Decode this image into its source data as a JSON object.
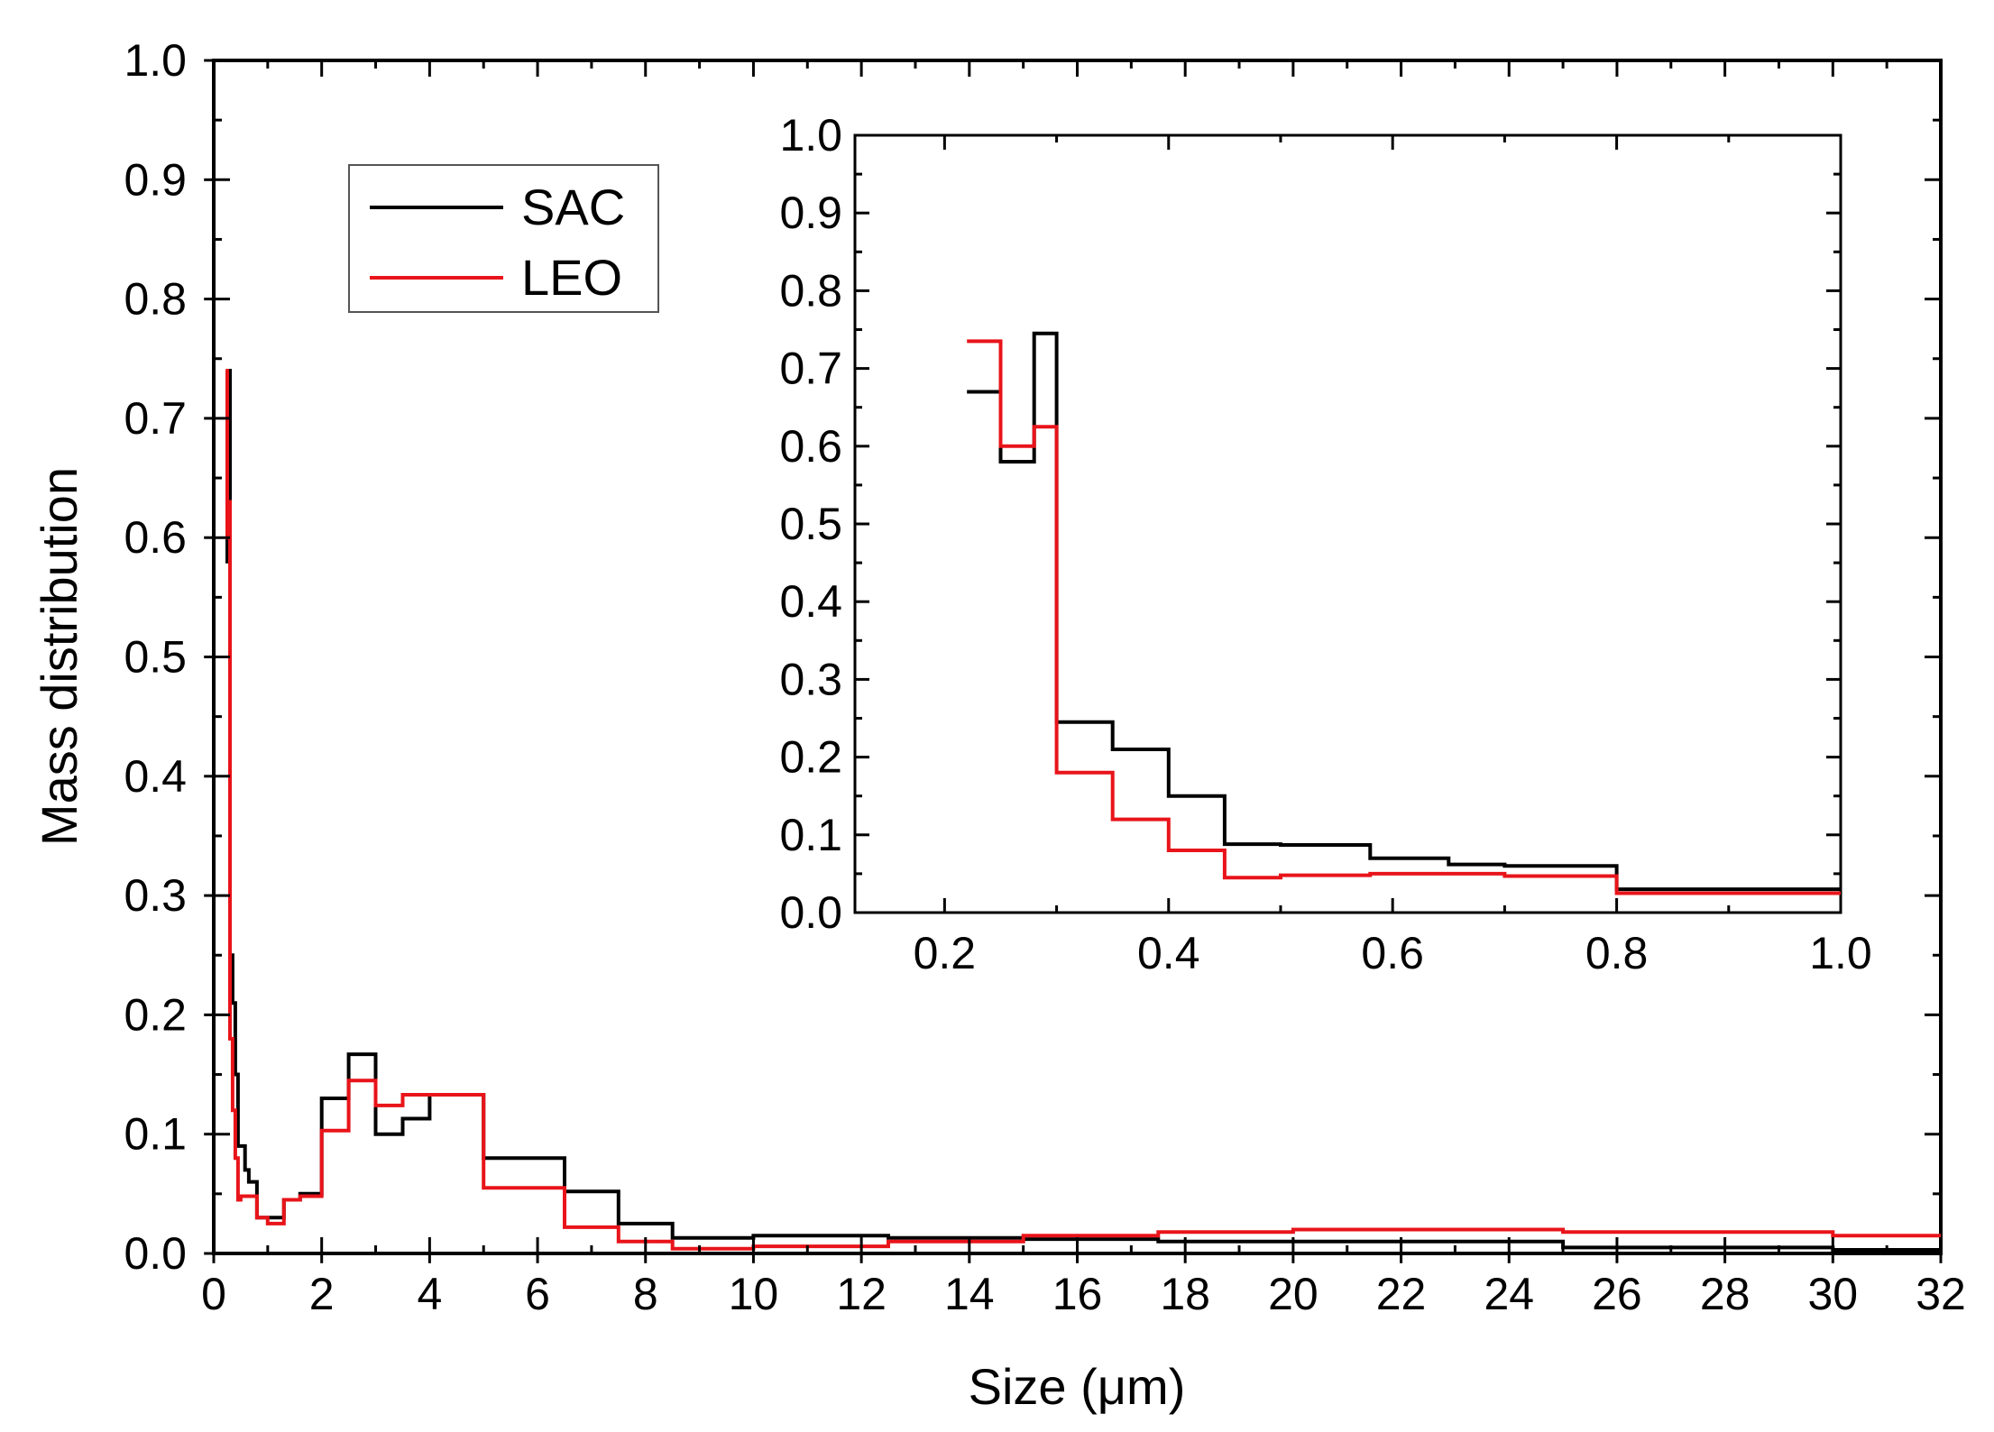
{
  "chart_data": [
    {
      "id": "main",
      "type": "line",
      "step": true,
      "xlabel": "Size (μm)",
      "ylabel": "Mass distribution",
      "xlim": [
        0,
        32
      ],
      "ylim": [
        0,
        1.0
      ],
      "xticks": [
        0,
        2,
        4,
        6,
        8,
        10,
        12,
        14,
        16,
        18,
        20,
        22,
        24,
        26,
        28,
        30,
        32
      ],
      "xtick_labels": [
        "0",
        "2",
        "4",
        "6",
        "8",
        "10",
        "12",
        "14",
        "16",
        "18",
        "20",
        "22",
        "24",
        "26",
        "28",
        "30",
        "32"
      ],
      "yticks": [
        0,
        0.1,
        0.2,
        0.3,
        0.4,
        0.5,
        0.6,
        0.7,
        0.8,
        0.9,
        1.0
      ],
      "ytick_labels": [
        "0.0",
        "0.1",
        "0.2",
        "0.3",
        "0.4",
        "0.5",
        "0.6",
        "0.7",
        "0.8",
        "0.9",
        "1.0"
      ],
      "legend": {
        "position": "top-left",
        "entries": [
          {
            "name": "SAC",
            "color": "#000000"
          },
          {
            "name": "LEO",
            "color": "#e8141a"
          }
        ]
      },
      "series": [
        {
          "name": "SAC",
          "color": "#000000",
          "x": [
            0.22,
            0.25,
            0.28,
            0.3,
            0.35,
            0.4,
            0.45,
            0.58,
            0.65,
            0.8,
            1.0,
            1.3,
            1.6,
            2.0,
            2.5,
            3.0,
            3.5,
            4.0,
            5.0,
            6.5,
            7.5,
            8.5,
            10.0,
            12.5,
            15.0,
            17.5,
            20.0,
            25.0,
            30.0,
            32.0
          ],
          "y": [
            0.67,
            0.58,
            0.74,
            0.25,
            0.21,
            0.15,
            0.09,
            0.07,
            0.06,
            0.03,
            0.03,
            0.045,
            0.05,
            0.13,
            0.167,
            0.1,
            0.113,
            0.133,
            0.08,
            0.052,
            0.025,
            0.013,
            0.015,
            0.013,
            0.012,
            0.01,
            0.01,
            0.005,
            0.003,
            0.003
          ]
        },
        {
          "name": "LEO",
          "color": "#e8141a",
          "x": [
            0.22,
            0.25,
            0.28,
            0.3,
            0.35,
            0.4,
            0.45,
            0.5,
            0.8,
            1.0,
            1.3,
            1.6,
            2.0,
            2.5,
            3.0,
            3.5,
            5.0,
            6.5,
            7.5,
            8.5,
            10.0,
            12.5,
            15.0,
            17.5,
            20.0,
            25.0,
            30.0,
            32.0
          ],
          "y": [
            0.74,
            0.6,
            0.63,
            0.18,
            0.12,
            0.08,
            0.045,
            0.048,
            0.03,
            0.025,
            0.045,
            0.048,
            0.103,
            0.145,
            0.124,
            0.133,
            0.055,
            0.022,
            0.01,
            0.004,
            0.006,
            0.01,
            0.015,
            0.018,
            0.02,
            0.018,
            0.015,
            0.015
          ]
        }
      ]
    },
    {
      "id": "inset",
      "type": "line",
      "step": true,
      "position": "top-right",
      "xlim": [
        0.12,
        1.0
      ],
      "ylim": [
        0,
        1.0
      ],
      "xticks": [
        0.2,
        0.4,
        0.6,
        0.8,
        1.0
      ],
      "xtick_labels": [
        "0.2",
        "0.4",
        "0.6",
        "0.8",
        "1.0"
      ],
      "yticks": [
        0,
        0.1,
        0.2,
        0.3,
        0.4,
        0.5,
        0.6,
        0.7,
        0.8,
        0.9,
        1.0
      ],
      "ytick_labels": [
        "0.0",
        "0.1",
        "0.2",
        "0.3",
        "0.4",
        "0.5",
        "0.6",
        "0.7",
        "0.8",
        "0.9",
        "1.0"
      ],
      "series": [
        {
          "name": "SAC",
          "color": "#000000",
          "x": [
            0.22,
            0.25,
            0.28,
            0.3,
            0.35,
            0.4,
            0.45,
            0.5,
            0.58,
            0.65,
            0.7,
            0.8,
            1.0
          ],
          "y": [
            0.67,
            0.58,
            0.745,
            0.245,
            0.21,
            0.15,
            0.088,
            0.087,
            0.07,
            0.062,
            0.06,
            0.03,
            0.03
          ]
        },
        {
          "name": "LEO",
          "color": "#e8141a",
          "x": [
            0.22,
            0.25,
            0.28,
            0.3,
            0.35,
            0.4,
            0.45,
            0.5,
            0.58,
            0.65,
            0.7,
            0.8,
            1.0
          ],
          "y": [
            0.735,
            0.6,
            0.625,
            0.18,
            0.12,
            0.08,
            0.045,
            0.048,
            0.05,
            0.05,
            0.047,
            0.025,
            0.025
          ]
        }
      ]
    }
  ]
}
